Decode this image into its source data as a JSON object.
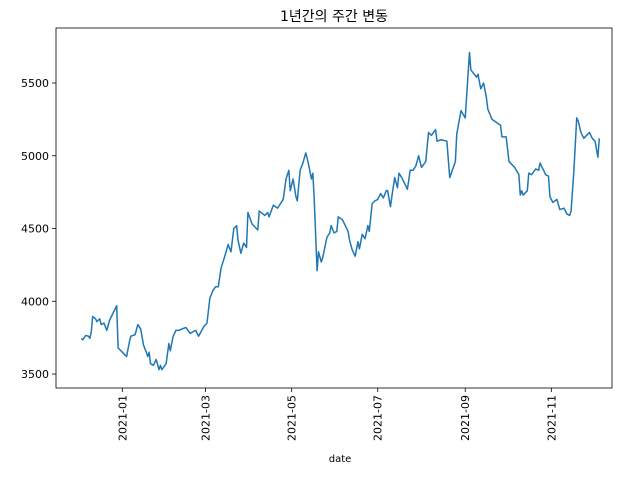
{
  "chart_data": {
    "type": "line",
    "title": "1년간의 주간 변동",
    "xlabel": "date",
    "x": [
      "2020-12-03",
      "2020-12-04",
      "2020-12-06",
      "2020-12-08",
      "2020-12-09",
      "2020-12-10",
      "2020-12-11",
      "2020-12-13",
      "2020-12-14",
      "2020-12-16",
      "2020-12-17",
      "2020-12-19",
      "2020-12-21",
      "2020-12-23",
      "2020-12-25",
      "2020-12-28",
      "2020-12-29",
      "2021-01-01",
      "2021-01-04",
      "2021-01-06",
      "2021-01-07",
      "2021-01-10",
      "2021-01-12",
      "2021-01-14",
      "2021-01-16",
      "2021-01-18",
      "2021-01-19",
      "2021-01-20",
      "2021-01-21",
      "2021-01-23",
      "2021-01-25",
      "2021-01-27",
      "2021-01-28",
      "2021-01-29",
      "2021-02-01",
      "2021-02-03",
      "2021-02-04",
      "2021-02-06",
      "2021-02-08",
      "2021-02-10",
      "2021-02-15",
      "2021-02-18",
      "2021-02-22",
      "2021-02-24",
      "2021-02-28",
      "2021-03-02",
      "2021-03-04",
      "2021-03-06",
      "2021-03-08",
      "2021-03-10",
      "2021-03-12",
      "2021-03-14",
      "2021-03-17",
      "2021-03-19",
      "2021-03-21",
      "2021-03-23",
      "2021-03-24",
      "2021-03-26",
      "2021-03-28",
      "2021-03-30",
      "2021-03-31",
      "2021-04-03",
      "2021-04-07",
      "2021-04-08",
      "2021-04-12",
      "2021-04-14",
      "2021-04-15",
      "2021-04-18",
      "2021-04-21",
      "2021-04-25",
      "2021-04-27",
      "2021-04-29",
      "2021-04-30",
      "2021-05-02",
      "2021-05-04",
      "2021-05-05",
      "2021-05-07",
      "2021-05-09",
      "2021-05-11",
      "2021-05-13",
      "2021-05-15",
      "2021-05-16",
      "2021-05-17",
      "2021-05-19",
      "2021-05-20",
      "2021-05-22",
      "2021-05-23",
      "2021-05-26",
      "2021-05-28",
      "2021-05-29",
      "2021-05-31",
      "2021-06-02",
      "2021-06-03",
      "2021-06-06",
      "2021-06-10",
      "2021-06-11",
      "2021-06-13",
      "2021-06-15",
      "2021-06-17",
      "2021-06-18",
      "2021-06-20",
      "2021-06-22",
      "2021-06-24",
      "2021-06-25",
      "2021-06-27",
      "2021-06-29",
      "2021-07-01",
      "2021-07-03",
      "2021-07-05",
      "2021-07-07",
      "2021-07-08",
      "2021-07-10",
      "2021-07-11",
      "2021-07-13",
      "2021-07-15",
      "2021-07-16",
      "2021-07-18",
      "2021-07-20",
      "2021-07-22",
      "2021-07-24",
      "2021-07-26",
      "2021-07-28",
      "2021-07-30",
      "2021-08-01",
      "2021-08-04",
      "2021-08-06",
      "2021-08-08",
      "2021-08-11",
      "2021-08-12",
      "2021-08-15",
      "2021-08-19",
      "2021-08-21",
      "2021-08-25",
      "2021-08-26",
      "2021-08-29",
      "2021-09-01",
      "2021-09-04",
      "2021-09-05",
      "2021-09-09",
      "2021-09-10",
      "2021-09-12",
      "2021-09-14",
      "2021-09-16",
      "2021-09-17",
      "2021-09-20",
      "2021-09-26",
      "2021-09-27",
      "2021-09-30",
      "2021-10-02",
      "2021-10-06",
      "2021-10-09",
      "2021-10-10",
      "2021-10-11",
      "2021-10-12",
      "2021-10-15",
      "2021-10-16",
      "2021-10-18",
      "2021-10-21",
      "2021-10-23",
      "2021-10-24",
      "2021-10-26",
      "2021-10-28",
      "2021-10-30",
      "2021-10-31",
      "2021-11-02",
      "2021-11-05",
      "2021-11-07",
      "2021-11-10",
      "2021-11-12",
      "2021-11-14",
      "2021-11-15",
      "2021-11-17",
      "2021-11-19",
      "2021-11-20",
      "2021-11-22",
      "2021-11-24",
      "2021-11-27",
      "2021-11-28",
      "2021-11-30",
      "2021-12-02",
      "2021-12-04",
      "2021-12-05"
    ],
    "series": [
      {
        "color": "#1f77b4",
        "values": [
          3745,
          3735,
          3765,
          3760,
          3745,
          3790,
          3895,
          3880,
          3860,
          3880,
          3840,
          3850,
          3800,
          3870,
          3910,
          3970,
          3680,
          3650,
          3620,
          3720,
          3760,
          3770,
          3840,
          3810,
          3700,
          3650,
          3620,
          3650,
          3570,
          3560,
          3600,
          3530,
          3560,
          3530,
          3570,
          3710,
          3660,
          3760,
          3800,
          3800,
          3820,
          3780,
          3800,
          3760,
          3830,
          3850,
          4020,
          4070,
          4100,
          4100,
          4230,
          4290,
          4390,
          4340,
          4500,
          4520,
          4420,
          4330,
          4400,
          4370,
          4610,
          4530,
          4490,
          4620,
          4590,
          4610,
          4580,
          4660,
          4640,
          4700,
          4840,
          4900,
          4760,
          4840,
          4720,
          4690,
          4900,
          4950,
          5020,
          4940,
          4840,
          4880,
          4700,
          4210,
          4340,
          4270,
          4300,
          4440,
          4470,
          4520,
          4470,
          4480,
          4580,
          4560,
          4480,
          4420,
          4350,
          4310,
          4410,
          4360,
          4460,
          4430,
          4520,
          4480,
          4670,
          4690,
          4700,
          4740,
          4710,
          4760,
          4760,
          4650,
          4720,
          4850,
          4780,
          4880,
          4850,
          4810,
          4770,
          4900,
          4900,
          4930,
          5000,
          4920,
          4960,
          5160,
          5140,
          5180,
          5100,
          5110,
          5100,
          4850,
          4960,
          5150,
          5310,
          5260,
          5710,
          5590,
          5540,
          5560,
          5460,
          5500,
          5400,
          5320,
          5250,
          5210,
          5130,
          5130,
          4960,
          4920,
          4870,
          4730,
          4760,
          4730,
          4760,
          4880,
          4870,
          4910,
          4900,
          4950,
          4910,
          4870,
          4860,
          4720,
          4680,
          4700,
          4630,
          4640,
          4600,
          4590,
          4620,
          4900,
          5260,
          5240,
          5160,
          5120,
          5150,
          5160,
          5120,
          5100,
          4990,
          5120
        ]
      }
    ],
    "xlim": [
      "2020-11-15",
      "2021-12-14"
    ],
    "xticks": [
      {
        "value": "2021-01-01",
        "label": "2021-01"
      },
      {
        "value": "2021-03-01",
        "label": "2021-03"
      },
      {
        "value": "2021-05-01",
        "label": "2021-05"
      },
      {
        "value": "2021-07-01",
        "label": "2021-07"
      },
      {
        "value": "2021-09-01",
        "label": "2021-09"
      },
      {
        "value": "2021-11-01",
        "label": "2021-11"
      }
    ],
    "ylim": [
      3404,
      5878
    ],
    "yticks": [
      3500,
      4000,
      4500,
      5000,
      5500
    ]
  }
}
